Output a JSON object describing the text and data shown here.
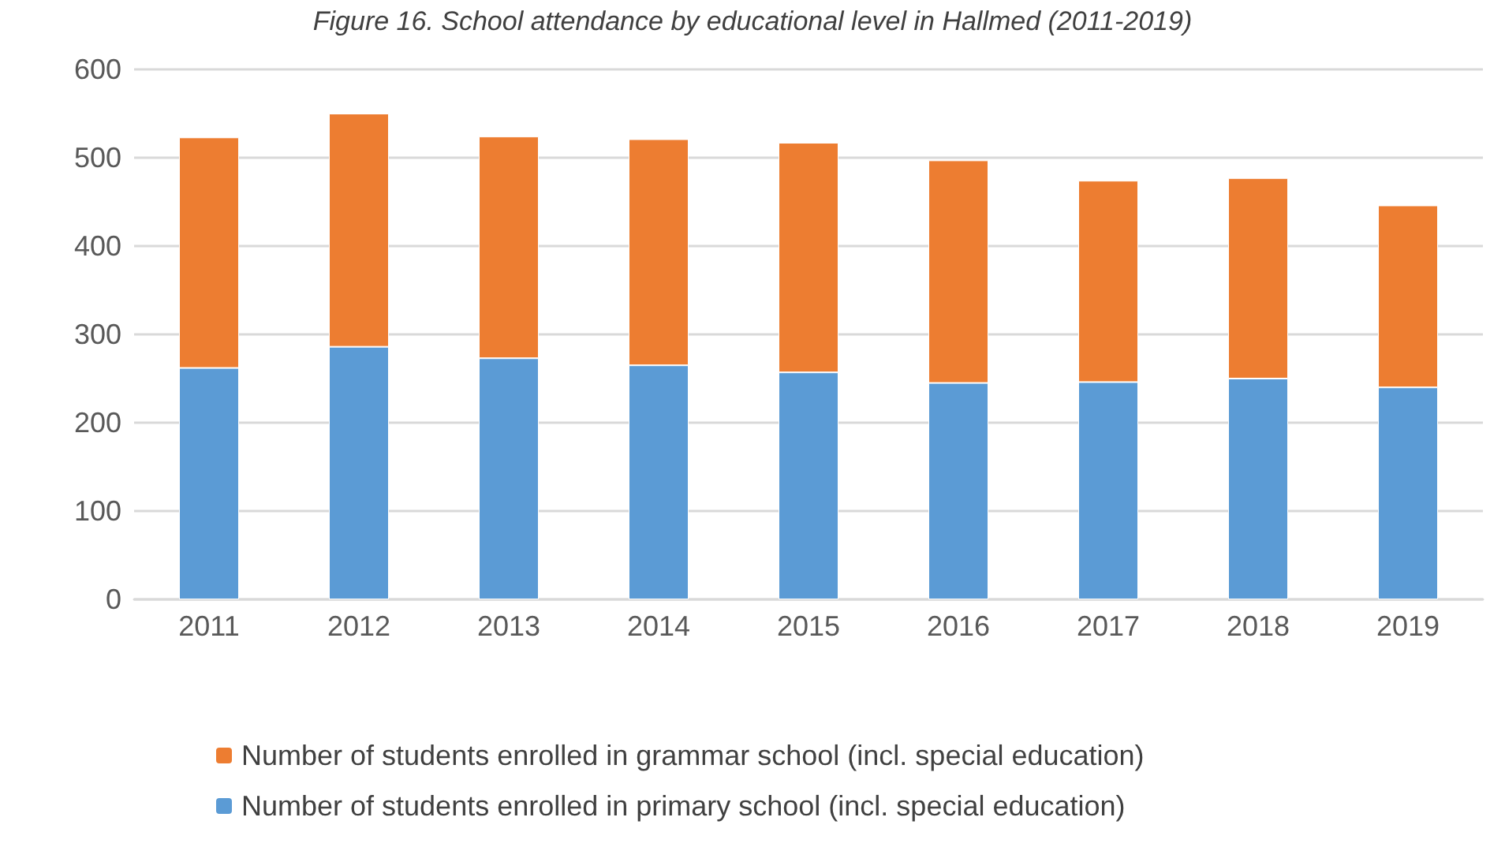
{
  "chart_data": {
    "type": "bar",
    "title": "Figure 16. School attendance by educational level in Hallmed (2011-2019)",
    "stacked": true,
    "categories": [
      "2011",
      "2012",
      "2013",
      "2014",
      "2015",
      "2016",
      "2017",
      "2018",
      "2019"
    ],
    "series": [
      {
        "name": "Number of students enrolled in primary school (incl. special education)",
        "color": "#5b9bd5",
        "values": [
          262,
          286,
          273,
          265,
          257,
          245,
          246,
          250,
          240
        ]
      },
      {
        "name": "Number of students enrolled in grammar school (incl. special education)",
        "color": "#ed7d31",
        "values": [
          261,
          264,
          251,
          256,
          260,
          252,
          228,
          227,
          206
        ]
      }
    ],
    "ylim": [
      0,
      600
    ],
    "yticks": [
      0,
      100,
      200,
      300,
      400,
      500,
      600
    ],
    "grid": "y",
    "legend": "bottom"
  }
}
